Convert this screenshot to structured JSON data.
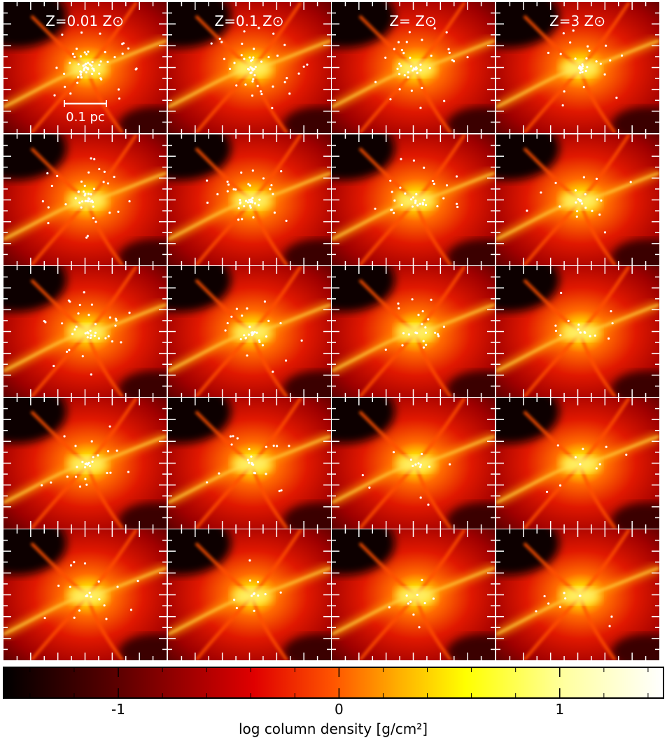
{
  "column_titles": [
    "Z=0.01 Z⊙",
    "Z=0.1 Z⊙",
    "Z= Z⊙",
    "Z=3 Z⊙"
  ],
  "scale_bar": "0.1 pc",
  "colorbar": {
    "lim": [
      -1.52,
      1.47
    ],
    "ticks": [
      -1,
      0,
      1
    ],
    "minor_ticks": [
      -1.4,
      -1.2,
      -0.8,
      -0.6,
      -0.4,
      -0.2,
      0.2,
      0.4,
      0.6,
      0.8,
      1.2,
      1.4
    ],
    "label": "log column density [g/cm²]"
  }
}
